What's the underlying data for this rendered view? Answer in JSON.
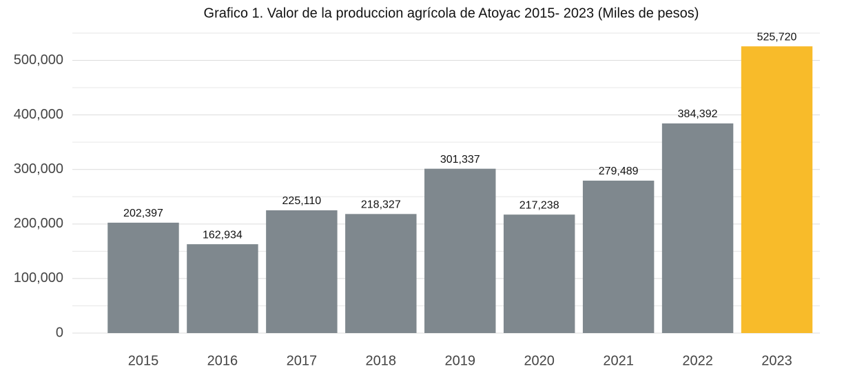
{
  "chart_data": {
    "type": "bar",
    "title": "Grafico 1. Valor de la produccion agrícola de Atoyac 2015- 2023 (Miles de pesos)",
    "categories": [
      "2015",
      "2016",
      "2017",
      "2018",
      "2019",
      "2020",
      "2021",
      "2022",
      "2023"
    ],
    "values": [
      202397,
      162934,
      225110,
      218327,
      301337,
      217238,
      279489,
      384392,
      525720
    ],
    "value_labels": [
      "202,397",
      "162,934",
      "225,110",
      "218,327",
      "301,337",
      "217,238",
      "279,489",
      "384,392",
      "525,720"
    ],
    "colors": [
      "#7f888e",
      "#7f888e",
      "#7f888e",
      "#7f888e",
      "#7f888e",
      "#7f888e",
      "#7f888e",
      "#7f888e",
      "#f8bb2a"
    ],
    "ylim": [
      0,
      550000
    ],
    "yticks": [
      0,
      {
        "value": 100000,
        "label": "100,000"
      },
      {
        "value": 200000,
        "label": "200,000"
      },
      {
        "value": 300000,
        "label": "300,000"
      },
      {
        "value": 400000,
        "label": "400,000"
      },
      {
        "value": 500000,
        "label": "500,000"
      }
    ],
    "minor_gridlines": [
      50000,
      150000,
      250000,
      350000,
      450000,
      550000
    ],
    "grid": true
  }
}
